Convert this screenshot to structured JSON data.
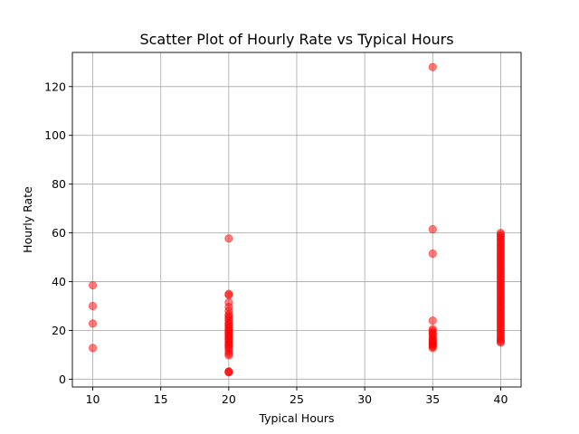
{
  "chart_data": {
    "type": "scatter",
    "title": "Scatter Plot of Hourly Rate vs Typical Hours",
    "xlabel": "Typical Hours",
    "ylabel": "Hourly Rate",
    "xlim": [
      8.5,
      41.5
    ],
    "ylim": [
      -3.2,
      134
    ],
    "xticks": [
      10,
      15,
      20,
      25,
      30,
      35,
      40
    ],
    "yticks": [
      0,
      20,
      40,
      60,
      80,
      100,
      120
    ],
    "grid": true,
    "point_color": "#ff0000",
    "point_opacity": 0.5,
    "series": [
      {
        "points": [
          [
            10,
            38.5
          ],
          [
            10,
            30
          ],
          [
            10,
            22.8
          ],
          [
            10,
            12.8
          ],
          [
            20,
            57.7
          ],
          [
            20,
            35
          ],
          [
            20,
            34.5
          ],
          [
            20,
            31.5
          ],
          [
            20,
            29.6
          ],
          [
            20,
            28
          ],
          [
            20,
            26.5
          ],
          [
            20,
            25.8
          ],
          [
            20,
            25
          ],
          [
            20,
            24
          ],
          [
            20,
            23
          ],
          [
            20,
            22.5
          ],
          [
            20,
            21.8
          ],
          [
            20,
            21
          ],
          [
            20,
            20.3
          ],
          [
            20,
            19.6
          ],
          [
            20,
            19
          ],
          [
            20,
            18.5
          ],
          [
            20,
            17.8
          ],
          [
            20,
            17.2
          ],
          [
            20,
            16.5
          ],
          [
            20,
            16
          ],
          [
            20,
            15.2
          ],
          [
            20,
            14.5
          ],
          [
            20,
            14
          ],
          [
            20,
            13.2
          ],
          [
            20,
            12.5
          ],
          [
            20,
            11.5
          ],
          [
            20,
            10.5
          ],
          [
            20,
            9.8
          ],
          [
            20,
            3.2
          ],
          [
            20,
            3
          ],
          [
            20,
            2.8
          ],
          [
            35,
            128
          ],
          [
            35,
            61.5
          ],
          [
            35,
            51.5
          ],
          [
            35,
            24
          ],
          [
            35,
            20.5
          ],
          [
            35,
            19.8
          ],
          [
            35,
            19
          ],
          [
            35,
            18.5
          ],
          [
            35,
            17.8
          ],
          [
            35,
            16.8
          ],
          [
            35,
            16.2
          ],
          [
            35,
            15.8
          ],
          [
            35,
            15.2
          ],
          [
            35,
            14.8
          ],
          [
            35,
            14.3
          ],
          [
            35,
            13.8
          ],
          [
            35,
            13.3
          ],
          [
            35,
            12.8
          ],
          [
            40,
            60
          ],
          [
            40,
            59.3
          ],
          [
            40,
            58.6
          ],
          [
            40,
            57.8
          ],
          [
            40,
            57
          ],
          [
            40,
            56.2
          ],
          [
            40,
            55.4
          ],
          [
            40,
            54.6
          ],
          [
            40,
            53.8
          ],
          [
            40,
            53
          ],
          [
            40,
            52.2
          ],
          [
            40,
            51.4
          ],
          [
            40,
            50.6
          ],
          [
            40,
            49.8
          ],
          [
            40,
            49
          ],
          [
            40,
            48.2
          ],
          [
            40,
            47.4
          ],
          [
            40,
            46.6
          ],
          [
            40,
            45.8
          ],
          [
            40,
            45
          ],
          [
            40,
            44.2
          ],
          [
            40,
            43.4
          ],
          [
            40,
            42.6
          ],
          [
            40,
            41.8
          ],
          [
            40,
            41
          ],
          [
            40,
            40.2
          ],
          [
            40,
            39.4
          ],
          [
            40,
            38.6
          ],
          [
            40,
            37.8
          ],
          [
            40,
            37
          ],
          [
            40,
            36.2
          ],
          [
            40,
            35.4
          ],
          [
            40,
            34.6
          ],
          [
            40,
            33.8
          ],
          [
            40,
            33
          ],
          [
            40,
            32.2
          ],
          [
            40,
            31.4
          ],
          [
            40,
            30.6
          ],
          [
            40,
            29.8
          ],
          [
            40,
            29
          ],
          [
            40,
            28.2
          ],
          [
            40,
            27.4
          ],
          [
            40,
            26.6
          ],
          [
            40,
            25.8
          ],
          [
            40,
            25
          ],
          [
            40,
            24.2
          ],
          [
            40,
            23.4
          ],
          [
            40,
            22.6
          ],
          [
            40,
            21.8
          ],
          [
            40,
            21
          ],
          [
            40,
            20.2
          ],
          [
            40,
            19.4
          ],
          [
            40,
            18.6
          ],
          [
            40,
            17.8
          ],
          [
            40,
            17
          ],
          [
            40,
            16.2
          ],
          [
            40,
            15.5
          ],
          [
            40,
            15
          ]
        ]
      }
    ]
  }
}
